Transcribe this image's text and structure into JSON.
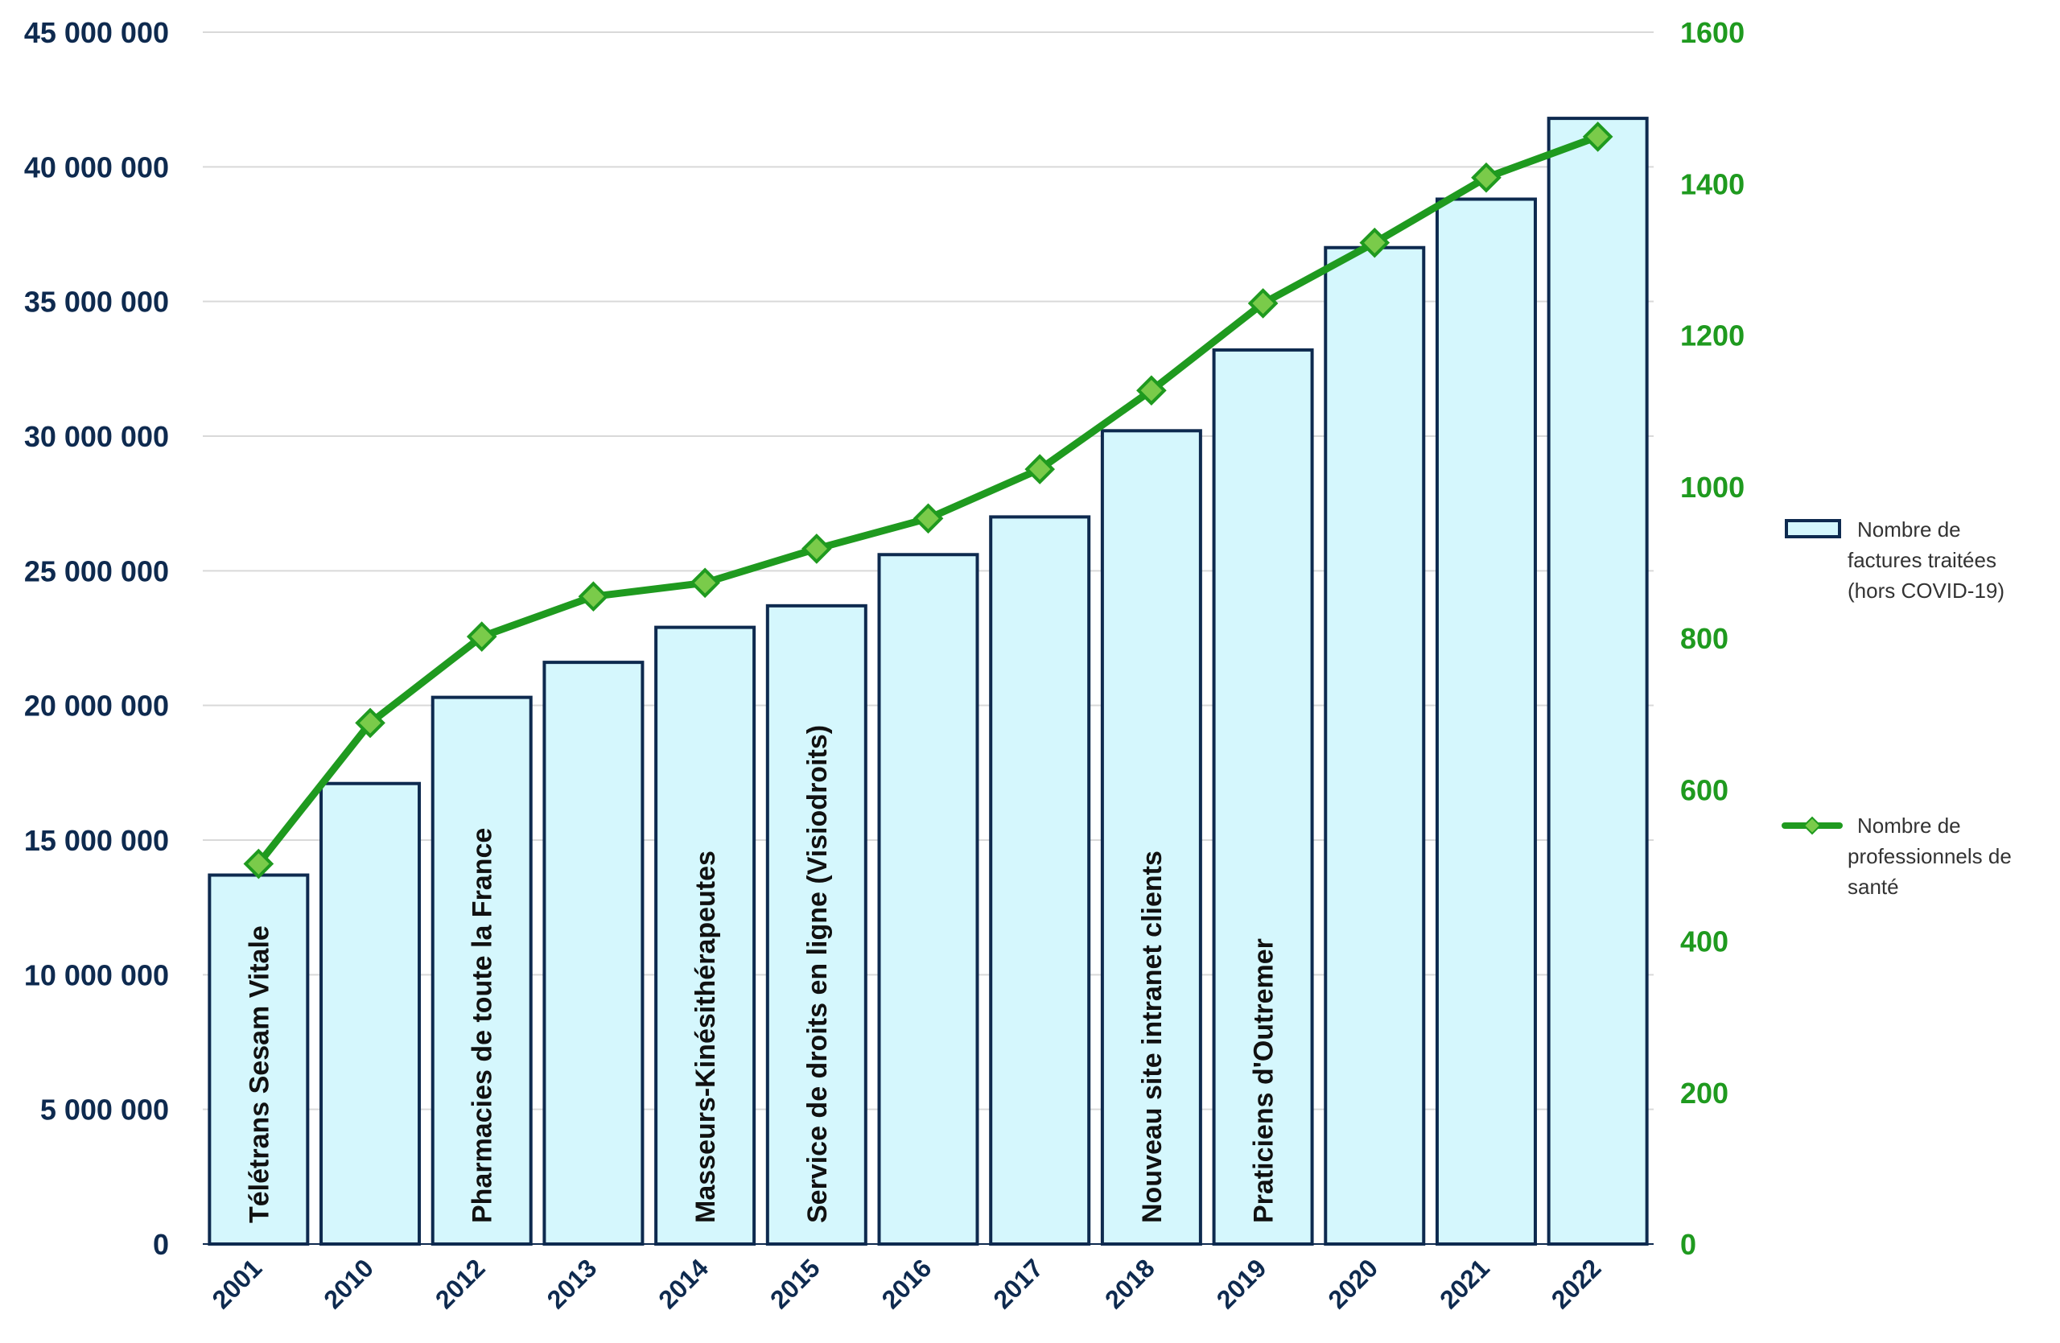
{
  "chart_data": {
    "type": "bar",
    "categories": [
      "2001",
      "2010",
      "2012",
      "2013",
      "2014",
      "2015",
      "2016",
      "2017",
      "2018",
      "2019",
      "2020",
      "2021",
      "2022"
    ],
    "series": [
      {
        "name": "Nombre de factures traitées (hors COVID-19)",
        "type": "bar",
        "axis": "left",
        "color": "#d5f7fd",
        "edgecolor": "#0e2a4f",
        "values": [
          13700000,
          17100000,
          20300000,
          21600000,
          22900000,
          23700000,
          25600000,
          27000000,
          30200000,
          33200000,
          37000000,
          38800000,
          41800000
        ]
      },
      {
        "name": "Nombre de professionnels de santé",
        "type": "line",
        "axis": "right",
        "color": "#1f9a1f",
        "marker_color": "#7acb4a",
        "marker": "diamond",
        "values": [
          502,
          688,
          802,
          855,
          873,
          918,
          958,
          1023,
          1127,
          1242,
          1322,
          1408,
          1462
        ]
      }
    ],
    "annotations": [
      {
        "category": "2001",
        "text": "Télétrans Sesam Vitale"
      },
      {
        "category": "2012",
        "text": "Pharmacies de toute la France"
      },
      {
        "category": "2014",
        "text": "Masseurs-Kinésithérapeutes"
      },
      {
        "category": "2015",
        "text": "Service de droits en ligne (Visiodroits)"
      },
      {
        "category": "2018",
        "text": "Nouveau site intranet clients"
      },
      {
        "category": "2019",
        "text": "Praticiens d'Outremer"
      }
    ],
    "y_left": {
      "ylim": [
        0,
        45000000
      ],
      "ticks": [
        0,
        5000000,
        10000000,
        15000000,
        20000000,
        25000000,
        30000000,
        35000000,
        40000000,
        45000000
      ],
      "tick_labels": [
        "0",
        "5 000 000",
        "10 000 000",
        "15 000 000",
        "20 000 000",
        "25 000 000",
        "30 000 000",
        "35 000 000",
        "40 000 000",
        "45 000 000"
      ],
      "color": "#0e2a4f"
    },
    "y_right": {
      "ylim": [
        0,
        1600
      ],
      "ticks": [
        0,
        200,
        400,
        600,
        800,
        1000,
        1200,
        1400,
        1600
      ],
      "tick_labels": [
        "0",
        "200",
        "400",
        "600",
        "800",
        "1000",
        "1200",
        "1400",
        "1600"
      ],
      "color": "#1f9a1f"
    },
    "grid": true,
    "grid_color": "#d9d9d9",
    "legend": {
      "position": "right",
      "entries": [
        {
          "label_lines": [
            "Nombre de",
            "factures traitées",
            "(hors COVID-19)"
          ],
          "kind": "bar"
        },
        {
          "label_lines": [
            "Nombre de",
            "professionnels de",
            "santé"
          ],
          "kind": "line"
        }
      ]
    }
  }
}
